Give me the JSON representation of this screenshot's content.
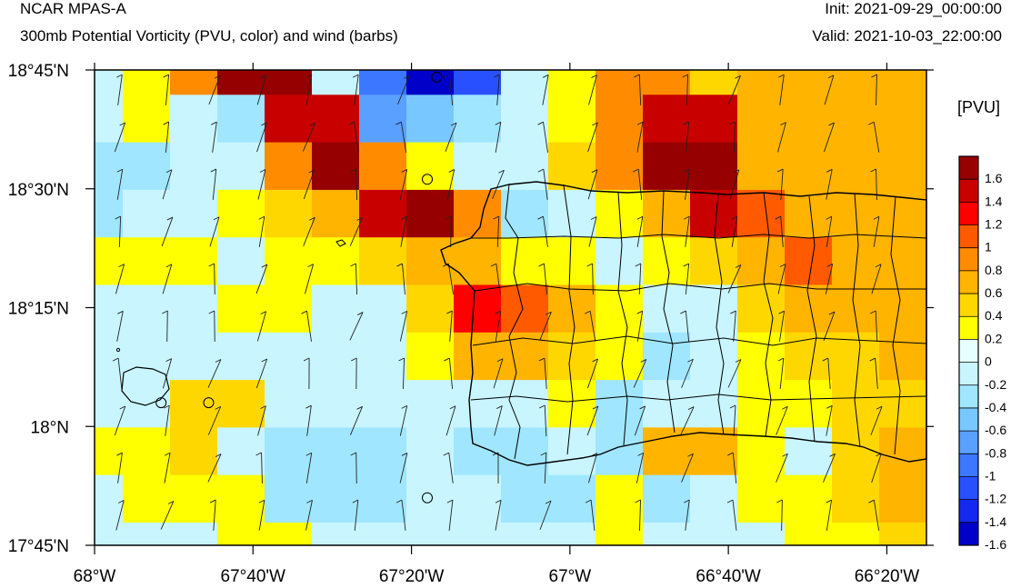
{
  "header": {
    "model": "NCAR MPAS-A",
    "field": "300mb Potential Vorticity (PVU, color) and wind (barbs)",
    "init": "Init: 2021-09-29_00:00:00",
    "valid": "Valid: 2021-10-03_22:00:00"
  },
  "map": {
    "lon_range": [
      -68.0,
      -66.25
    ],
    "lat_range": [
      17.75,
      18.75
    ],
    "x_ticks": [
      {
        "lon": -68.0,
        "label": "68°W"
      },
      {
        "lon": -67.6667,
        "label": "67°40'W"
      },
      {
        "lon": -67.3333,
        "label": "67°20'W"
      },
      {
        "lon": -67.0,
        "label": "67°W"
      },
      {
        "lon": -66.6667,
        "label": "66°40'W"
      },
      {
        "lon": -66.3333,
        "label": "66°20'W"
      }
    ],
    "y_ticks": [
      {
        "lat": 18.75,
        "label": "18°45'N"
      },
      {
        "lat": 18.5,
        "label": "18°30'N"
      },
      {
        "lat": 18.25,
        "label": "18°15'N"
      },
      {
        "lat": 18.0,
        "label": "18°N"
      },
      {
        "lat": 17.75,
        "label": "17°45'N"
      }
    ],
    "grid": "off",
    "pv_grid": [
      [
        -0.2,
        0.2,
        0.8,
        1.8,
        1.8,
        -0.2,
        -1.0,
        -1.6,
        -1.2,
        -0.2,
        0.2,
        0.8,
        0.8,
        0.4,
        0.6,
        0.6,
        0.6,
        0.6,
        0.2
      ],
      [
        -0.2,
        0.2,
        -0.2,
        -0.4,
        1.4,
        1.4,
        -0.8,
        -0.6,
        -0.4,
        -0.2,
        0.2,
        0.8,
        1.4,
        1.4,
        0.6,
        0.6,
        0.6,
        0.6,
        0.6
      ],
      [
        -0.4,
        -0.4,
        -0.2,
        -0.2,
        0.8,
        1.8,
        0.8,
        0.2,
        -0.2,
        -0.2,
        0.4,
        0.8,
        1.8,
        1.6,
        0.6,
        0.6,
        0.6,
        0.6,
        0.6
      ],
      [
        -0.4,
        -0.2,
        -0.2,
        0.2,
        0.4,
        0.6,
        1.4,
        1.6,
        0.8,
        -0.4,
        -0.2,
        0.2,
        0.6,
        1.4,
        1.0,
        0.6,
        0.6,
        0.6,
        0.6
      ],
      [
        0.2,
        0.2,
        0.2,
        -0.2,
        0.2,
        0.2,
        0.4,
        0.6,
        0.6,
        0.2,
        0.2,
        -0.2,
        0.2,
        0.4,
        0.6,
        1.0,
        0.6,
        0.6,
        0.6
      ],
      [
        -0.2,
        -0.2,
        -0.2,
        0.2,
        0.2,
        -0.2,
        -0.2,
        0.4,
        1.2,
        1.0,
        0.6,
        0.2,
        -0.2,
        -0.2,
        0.4,
        0.6,
        0.6,
        0.6,
        0.6
      ],
      [
        -0.2,
        -0.2,
        -0.2,
        -0.2,
        -0.2,
        -0.2,
        -0.2,
        0.2,
        0.6,
        0.6,
        0.4,
        0.2,
        -0.4,
        -0.2,
        0.2,
        0.4,
        0.4,
        0.6,
        0.4
      ],
      [
        -0.2,
        -0.2,
        0.4,
        0.4,
        -0.2,
        -0.2,
        -0.2,
        -0.2,
        -0.2,
        -0.2,
        0.2,
        -0.4,
        -0.2,
        -0.2,
        0.2,
        0.2,
        0.4,
        0.4,
        0.2
      ],
      [
        0.2,
        0.2,
        0.4,
        -0.2,
        -0.4,
        -0.4,
        -0.4,
        -0.2,
        -0.4,
        -0.4,
        -0.2,
        -0.4,
        0.6,
        0.6,
        0.2,
        -0.2,
        0.4,
        0.6,
        0.6
      ],
      [
        -0.2,
        0.2,
        0.2,
        0.2,
        -0.4,
        -0.4,
        -0.4,
        -0.2,
        -0.2,
        -0.4,
        -0.4,
        0.2,
        -0.4,
        -0.2,
        0.2,
        0.2,
        0.4,
        0.6,
        0.6
      ],
      [
        -0.2,
        -0.2,
        -0.2,
        0.2,
        0.2,
        -0.2,
        -0.2,
        -0.2,
        -0.2,
        -0.2,
        -0.2,
        0.2,
        -0.2,
        -0.2,
        -0.2,
        0.2,
        0.2,
        0.4,
        0.6
      ]
    ],
    "calm_circles": [
      {
        "lon": -67.28,
        "lat": 18.735
      },
      {
        "lon": -67.3,
        "lat": 18.52
      },
      {
        "lon": -67.86,
        "lat": 18.05
      },
      {
        "lon": -67.76,
        "lat": 18.05
      },
      {
        "lon": -67.3,
        "lat": 17.85
      }
    ]
  },
  "colorbar": {
    "unit": "[PVU]",
    "levels": [
      "1.6",
      "1.4",
      "1.2",
      "1",
      "0.8",
      "0.6",
      "0.4",
      "0.2",
      "0",
      "-0.2",
      "-0.4",
      "-0.6",
      "-0.8",
      "-1",
      "-1.2",
      "-1.4",
      "-1.6"
    ],
    "colors": [
      "#960000",
      "#c80000",
      "#ff0000",
      "#ff5a00",
      "#ff8c00",
      "#ffb400",
      "#ffd700",
      "#ffff00",
      "#e6ffff",
      "#c8f5ff",
      "#a0e6ff",
      "#78c8ff",
      "#5aa0ff",
      "#3c78ff",
      "#2850ff",
      "#1428f0",
      "#0000c8"
    ]
  }
}
